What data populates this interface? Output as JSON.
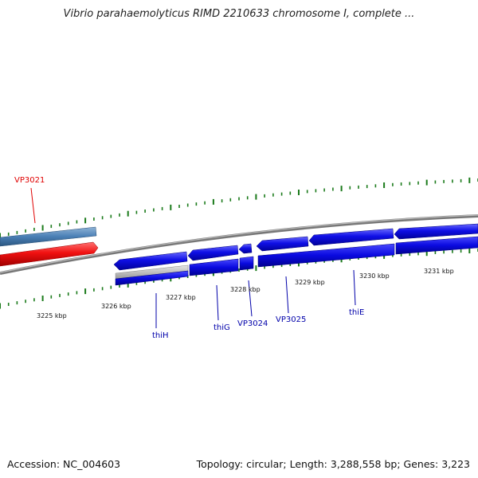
{
  "title": "Vibrio parahaemolyticus RIMD 2210633 chromosome I, complete ...",
  "colors": {
    "forward_gene": "#0000dd",
    "reverse_gene": "#0000dd",
    "highlight_gene": "#ee1111",
    "highlight_label": "#e00000",
    "flank_gene": "#4682b4",
    "partial_gene": "#bbbbbb",
    "backbone": "#888888",
    "tick": "#1a7a1a",
    "gene_label": "#0000aa"
  },
  "scale_labels": [
    "3225 kbp",
    "3226 kbp",
    "3227 kbp",
    "3228 kbp",
    "3229 kbp",
    "3230 kbp",
    "3231 kbp"
  ],
  "gene_labels": [
    {
      "id": "vp3021",
      "text": "VP3021",
      "highlight": true
    },
    {
      "id": "thih",
      "text": "thiH",
      "highlight": false
    },
    {
      "id": "thig",
      "text": "thiG",
      "highlight": false
    },
    {
      "id": "vp3024",
      "text": "VP3024",
      "highlight": false
    },
    {
      "id": "vp3025",
      "text": "VP3025",
      "highlight": false
    },
    {
      "id": "thie",
      "text": "thiE",
      "highlight": false
    }
  ],
  "footer": {
    "accession": "Accession: NC_004603",
    "summary": "Topology: circular; Length: 3,288,558 bp; Genes: 3,223"
  }
}
